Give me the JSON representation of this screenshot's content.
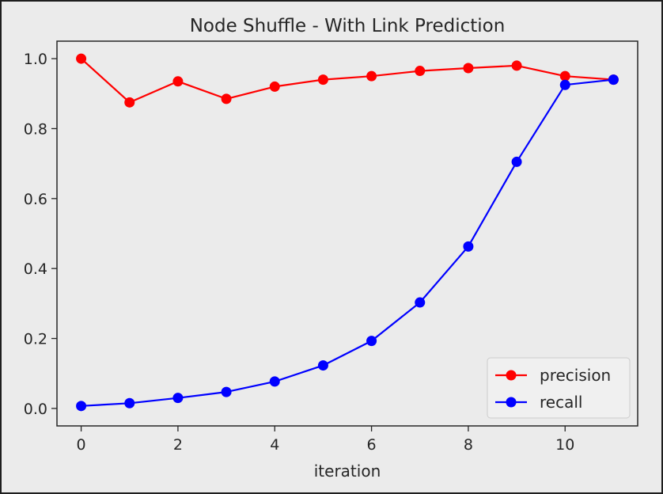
{
  "chart_data": {
    "type": "line",
    "title": "Node Shuffle - With Link Prediction",
    "xlabel": "iteration",
    "ylabel": "",
    "x": [
      0,
      1,
      2,
      3,
      4,
      5,
      6,
      7,
      8,
      9,
      10,
      11
    ],
    "xlim": [
      -0.5,
      11.5
    ],
    "ylim": [
      -0.05,
      1.05
    ],
    "xticks": [
      "0",
      "2",
      "4",
      "6",
      "8",
      "10"
    ],
    "yticks": [
      "0.0",
      "0.2",
      "0.4",
      "0.6",
      "0.8",
      "1.0"
    ],
    "grid": false,
    "legend_position": "bottom-right",
    "series": [
      {
        "name": "precision",
        "color": "#ff0000",
        "marker": "circle",
        "values": [
          1.0,
          0.875,
          0.935,
          0.885,
          0.92,
          0.94,
          0.95,
          0.965,
          0.973,
          0.98,
          0.95,
          0.94
        ]
      },
      {
        "name": "recall",
        "color": "#0000ff",
        "marker": "circle",
        "values": [
          0.007,
          0.015,
          0.03,
          0.047,
          0.077,
          0.123,
          0.193,
          0.303,
          0.463,
          0.705,
          0.925,
          0.94
        ]
      }
    ]
  }
}
